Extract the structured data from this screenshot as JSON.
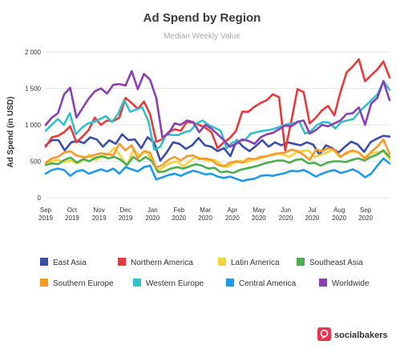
{
  "chart_data": {
    "type": "line",
    "title": "Ad Spend by Region",
    "subtitle": "Median Weekly Value",
    "ylabel": "Ad Spend (in USD)",
    "xlabel": "",
    "ylim": [
      0,
      2000
    ],
    "yticks": [
      0,
      500,
      1000,
      1500,
      2000
    ],
    "ytick_labels": [
      "0",
      "500",
      "1 000",
      "1 500",
      "2 000"
    ],
    "xtick_labels": [
      {
        "w": 0,
        "month": "Sep",
        "year": "2019"
      },
      {
        "w": 4.3,
        "month": "Oct",
        "year": "2019"
      },
      {
        "w": 8.7,
        "month": "Nov",
        "year": "2019"
      },
      {
        "w": 13,
        "month": "Dec",
        "year": "2019"
      },
      {
        "w": 17.4,
        "month": "Jan",
        "year": "2020"
      },
      {
        "w": 21.7,
        "month": "Feb",
        "year": "2020"
      },
      {
        "w": 26,
        "month": "Mar",
        "year": "2020"
      },
      {
        "w": 30.4,
        "month": "Apr",
        "year": "2020"
      },
      {
        "w": 34.7,
        "month": "May",
        "year": "2020"
      },
      {
        "w": 39.1,
        "month": "Jun",
        "year": "2020"
      },
      {
        "w": 43.4,
        "month": "Jul",
        "year": "2020"
      },
      {
        "w": 47.8,
        "month": "Aug",
        "year": "2020"
      },
      {
        "w": 52.1,
        "month": "Sep",
        "year": "2020"
      }
    ],
    "grid": true,
    "legend_position": "bottom",
    "series": [
      {
        "name": "East Asia",
        "color": "#3a4ea5",
        "values": [
          720,
          790,
          790,
          650,
          760,
          780,
          750,
          830,
          800,
          700,
          790,
          740,
          870,
          790,
          800,
          680,
          830,
          760,
          510,
          620,
          760,
          740,
          670,
          720,
          820,
          720,
          700,
          640,
          680,
          570,
          790,
          700,
          640,
          710,
          790,
          700,
          760,
          720,
          760,
          740,
          720,
          760,
          730,
          590,
          720,
          680,
          620,
          700,
          770,
          730,
          630,
          760,
          810,
          850,
          840
        ]
      },
      {
        "name": "Northern America",
        "color": "#e63a3a",
        "values": [
          700,
          830,
          850,
          900,
          980,
          760,
          840,
          930,
          1100,
          1000,
          1060,
          1050,
          1100,
          1370,
          1300,
          1220,
          1320,
          1150,
          770,
          800,
          900,
          940,
          920,
          1040,
          1030,
          1000,
          960,
          900,
          680,
          760,
          820,
          920,
          1180,
          1180,
          1250,
          1300,
          1340,
          1420,
          1380,
          650,
          1050,
          1490,
          1450,
          1020,
          1100,
          1200,
          1260,
          1130,
          1450,
          1720,
          1800,
          1900,
          1600,
          1680,
          1760,
          1870,
          1650
        ]
      },
      {
        "name": "Latin America",
        "color": "#f5d33a",
        "values": [
          470,
          500,
          520,
          490,
          510,
          470,
          520,
          590,
          520,
          560,
          600,
          680,
          570,
          430,
          660,
          580,
          640,
          520,
          370,
          430,
          480,
          500,
          430,
          500,
          560,
          540,
          500,
          520,
          460,
          420,
          470,
          510,
          480,
          520,
          530,
          560,
          590,
          610,
          590,
          560,
          620,
          640,
          650,
          560,
          590,
          620,
          660,
          560,
          600,
          640,
          620,
          560,
          610,
          620,
          640,
          530
        ]
      },
      {
        "name": "Southeast Asia",
        "color": "#4caf4f",
        "values": [
          450,
          470,
          460,
          520,
          550,
          480,
          530,
          500,
          550,
          570,
          540,
          560,
          520,
          450,
          560,
          500,
          560,
          500,
          350,
          360,
          400,
          420,
          400,
          430,
          460,
          440,
          400,
          410,
          350,
          360,
          340,
          380,
          400,
          420,
          440,
          470,
          490,
          510,
          510,
          480,
          520,
          530,
          470,
          480,
          440,
          480,
          500,
          500,
          490,
          520,
          540,
          510,
          560,
          590,
          650,
          560
        ]
      },
      {
        "name": "Southern Europe",
        "color": "#f79a2c",
        "values": [
          480,
          540,
          560,
          620,
          640,
          580,
          560,
          560,
          590,
          610,
          600,
          580,
          740,
          650,
          720,
          540,
          640,
          620,
          410,
          450,
          520,
          560,
          510,
          570,
          580,
          530,
          540,
          520,
          450,
          430,
          480,
          500,
          480,
          540,
          530,
          560,
          570,
          590,
          610,
          620,
          660,
          640,
          590,
          520,
          660,
          640,
          680,
          660,
          560,
          620,
          650,
          620,
          530,
          630,
          700,
          800,
          600
        ]
      },
      {
        "name": "Western Europe",
        "color": "#33c0c9",
        "values": [
          920,
          1000,
          1080,
          1000,
          1160,
          870,
          960,
          1020,
          1040,
          1080,
          1120,
          1040,
          1150,
          1340,
          1180,
          1210,
          1240,
          1060,
          660,
          700,
          870,
          860,
          860,
          900,
          920,
          1020,
          1060,
          1000,
          960,
          920,
          680,
          760,
          780,
          790,
          880,
          900,
          920,
          930,
          950,
          980,
          1010,
          1020,
          1050,
          880,
          920,
          1000,
          1040,
          1030,
          950,
          1040,
          1060,
          1080,
          1180,
          1260,
          1340,
          1420,
          1600,
          1480
        ]
      },
      {
        "name": "Central America",
        "color": "#1e9ae8",
        "values": [
          330,
          380,
          400,
          380,
          300,
          360,
          380,
          330,
          360,
          390,
          360,
          400,
          330,
          420,
          390,
          360,
          420,
          440,
          250,
          280,
          310,
          330,
          300,
          340,
          370,
          350,
          320,
          330,
          290,
          270,
          290,
          260,
          230,
          250,
          260,
          300,
          310,
          300,
          320,
          340,
          370,
          360,
          380,
          340,
          290,
          330,
          360,
          380,
          340,
          360,
          390,
          350,
          280,
          330,
          440,
          540,
          470
        ]
      },
      {
        "name": "Worldwide",
        "color": "#8c3fb0",
        "values": [
          1000,
          1100,
          1160,
          1420,
          1510,
          1100,
          1230,
          1360,
          1460,
          1500,
          1430,
          1550,
          1560,
          1540,
          1740,
          1490,
          1700,
          1620,
          1370,
          830,
          880,
          1020,
          1000,
          1060,
          1040,
          900,
          1000,
          950,
          870,
          790,
          700,
          740,
          800,
          780,
          740,
          830,
          870,
          890,
          940,
          990,
          980,
          1040,
          1060,
          880,
          930,
          1000,
          980,
          1020,
          1060,
          1150,
          1160,
          1240,
          1000,
          1290,
          1370,
          1600,
          1340
        ]
      }
    ]
  },
  "legend_items": [
    {
      "name": "East Asia",
      "color": "#3a4ea5"
    },
    {
      "name": "Northern America",
      "color": "#e63a3a"
    },
    {
      "name": "Latin America",
      "color": "#f5d33a"
    },
    {
      "name": "Southeast Asia",
      "color": "#4caf4f"
    },
    {
      "name": "Southern Europe",
      "color": "#f79a2c"
    },
    {
      "name": "Western Europe",
      "color": "#33c0c9"
    },
    {
      "name": "Central America",
      "color": "#1e9ae8"
    },
    {
      "name": "Worldwide",
      "color": "#8c3fb0"
    }
  ],
  "brand": {
    "name": "socialbakers",
    "color": "#e8344e"
  }
}
